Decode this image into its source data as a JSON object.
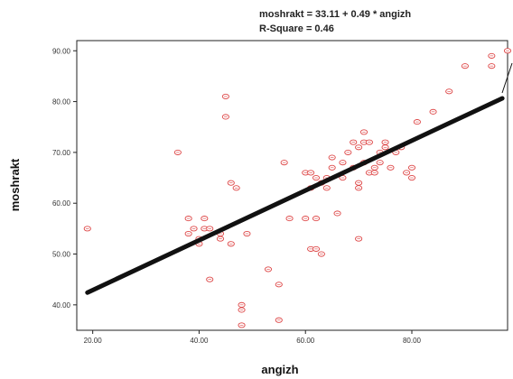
{
  "chart_data": {
    "type": "scatter",
    "title": "",
    "equation": "moshrakt = 33.11 + 0.49 * angizh",
    "r_square": "R-Square = 0.46",
    "xlabel": "angizh",
    "ylabel": "moshrakt",
    "xlim": [
      17,
      98
    ],
    "ylim": [
      35,
      92
    ],
    "x_ticks": [
      "20.00",
      "40.00",
      "60.00",
      "80.00"
    ],
    "x_tick_values": [
      20,
      40,
      60,
      80
    ],
    "y_ticks": [
      "40.00",
      "50.00",
      "60.00",
      "70.00",
      "80.00",
      "90.00"
    ],
    "y_tick_values": [
      40,
      50,
      60,
      70,
      80,
      90
    ],
    "regression": {
      "intercept": 33.11,
      "slope": 0.49,
      "x_range": [
        19,
        97
      ]
    },
    "grid": false,
    "legend": "none",
    "colors": {
      "points": "#dd4444",
      "fit_line": "#111111",
      "axes": "#222222"
    },
    "points": [
      [
        19,
        55
      ],
      [
        36,
        70
      ],
      [
        38,
        57
      ],
      [
        38,
        54
      ],
      [
        39,
        55
      ],
      [
        40,
        53
      ],
      [
        40,
        52
      ],
      [
        41,
        57
      ],
      [
        41,
        55
      ],
      [
        42,
        55
      ],
      [
        42,
        45
      ],
      [
        44,
        54
      ],
      [
        44,
        53
      ],
      [
        45,
        77
      ],
      [
        45,
        81
      ],
      [
        46,
        52
      ],
      [
        46,
        64
      ],
      [
        47,
        63
      ],
      [
        48,
        36
      ],
      [
        48,
        40
      ],
      [
        48,
        39
      ],
      [
        49,
        54
      ],
      [
        53,
        47
      ],
      [
        55,
        37
      ],
      [
        55,
        44
      ],
      [
        56,
        68
      ],
      [
        57,
        57
      ],
      [
        60,
        57
      ],
      [
        60,
        66
      ],
      [
        61,
        66
      ],
      [
        61,
        63
      ],
      [
        61,
        51
      ],
      [
        62,
        51
      ],
      [
        62,
        65
      ],
      [
        62,
        57
      ],
      [
        63,
        50
      ],
      [
        63,
        64
      ],
      [
        64,
        63
      ],
      [
        64,
        65
      ],
      [
        65,
        69
      ],
      [
        65,
        67
      ],
      [
        66,
        58
      ],
      [
        67,
        65
      ],
      [
        67,
        68
      ],
      [
        68,
        70
      ],
      [
        69,
        67
      ],
      [
        69,
        72
      ],
      [
        70,
        71
      ],
      [
        70,
        64
      ],
      [
        70,
        63
      ],
      [
        70,
        53
      ],
      [
        71,
        72
      ],
      [
        71,
        68
      ],
      [
        71,
        74
      ],
      [
        72,
        66
      ],
      [
        72,
        72
      ],
      [
        73,
        67
      ],
      [
        73,
        66
      ],
      [
        74,
        70
      ],
      [
        74,
        68
      ],
      [
        75,
        72
      ],
      [
        75,
        71
      ],
      [
        76,
        67
      ],
      [
        77,
        70
      ],
      [
        78,
        71
      ],
      [
        79,
        66
      ],
      [
        80,
        65
      ],
      [
        80,
        67
      ],
      [
        81,
        76
      ],
      [
        84,
        78
      ],
      [
        87,
        82
      ],
      [
        90,
        87
      ],
      [
        95,
        89
      ],
      [
        95,
        87
      ],
      [
        98,
        90
      ]
    ]
  }
}
